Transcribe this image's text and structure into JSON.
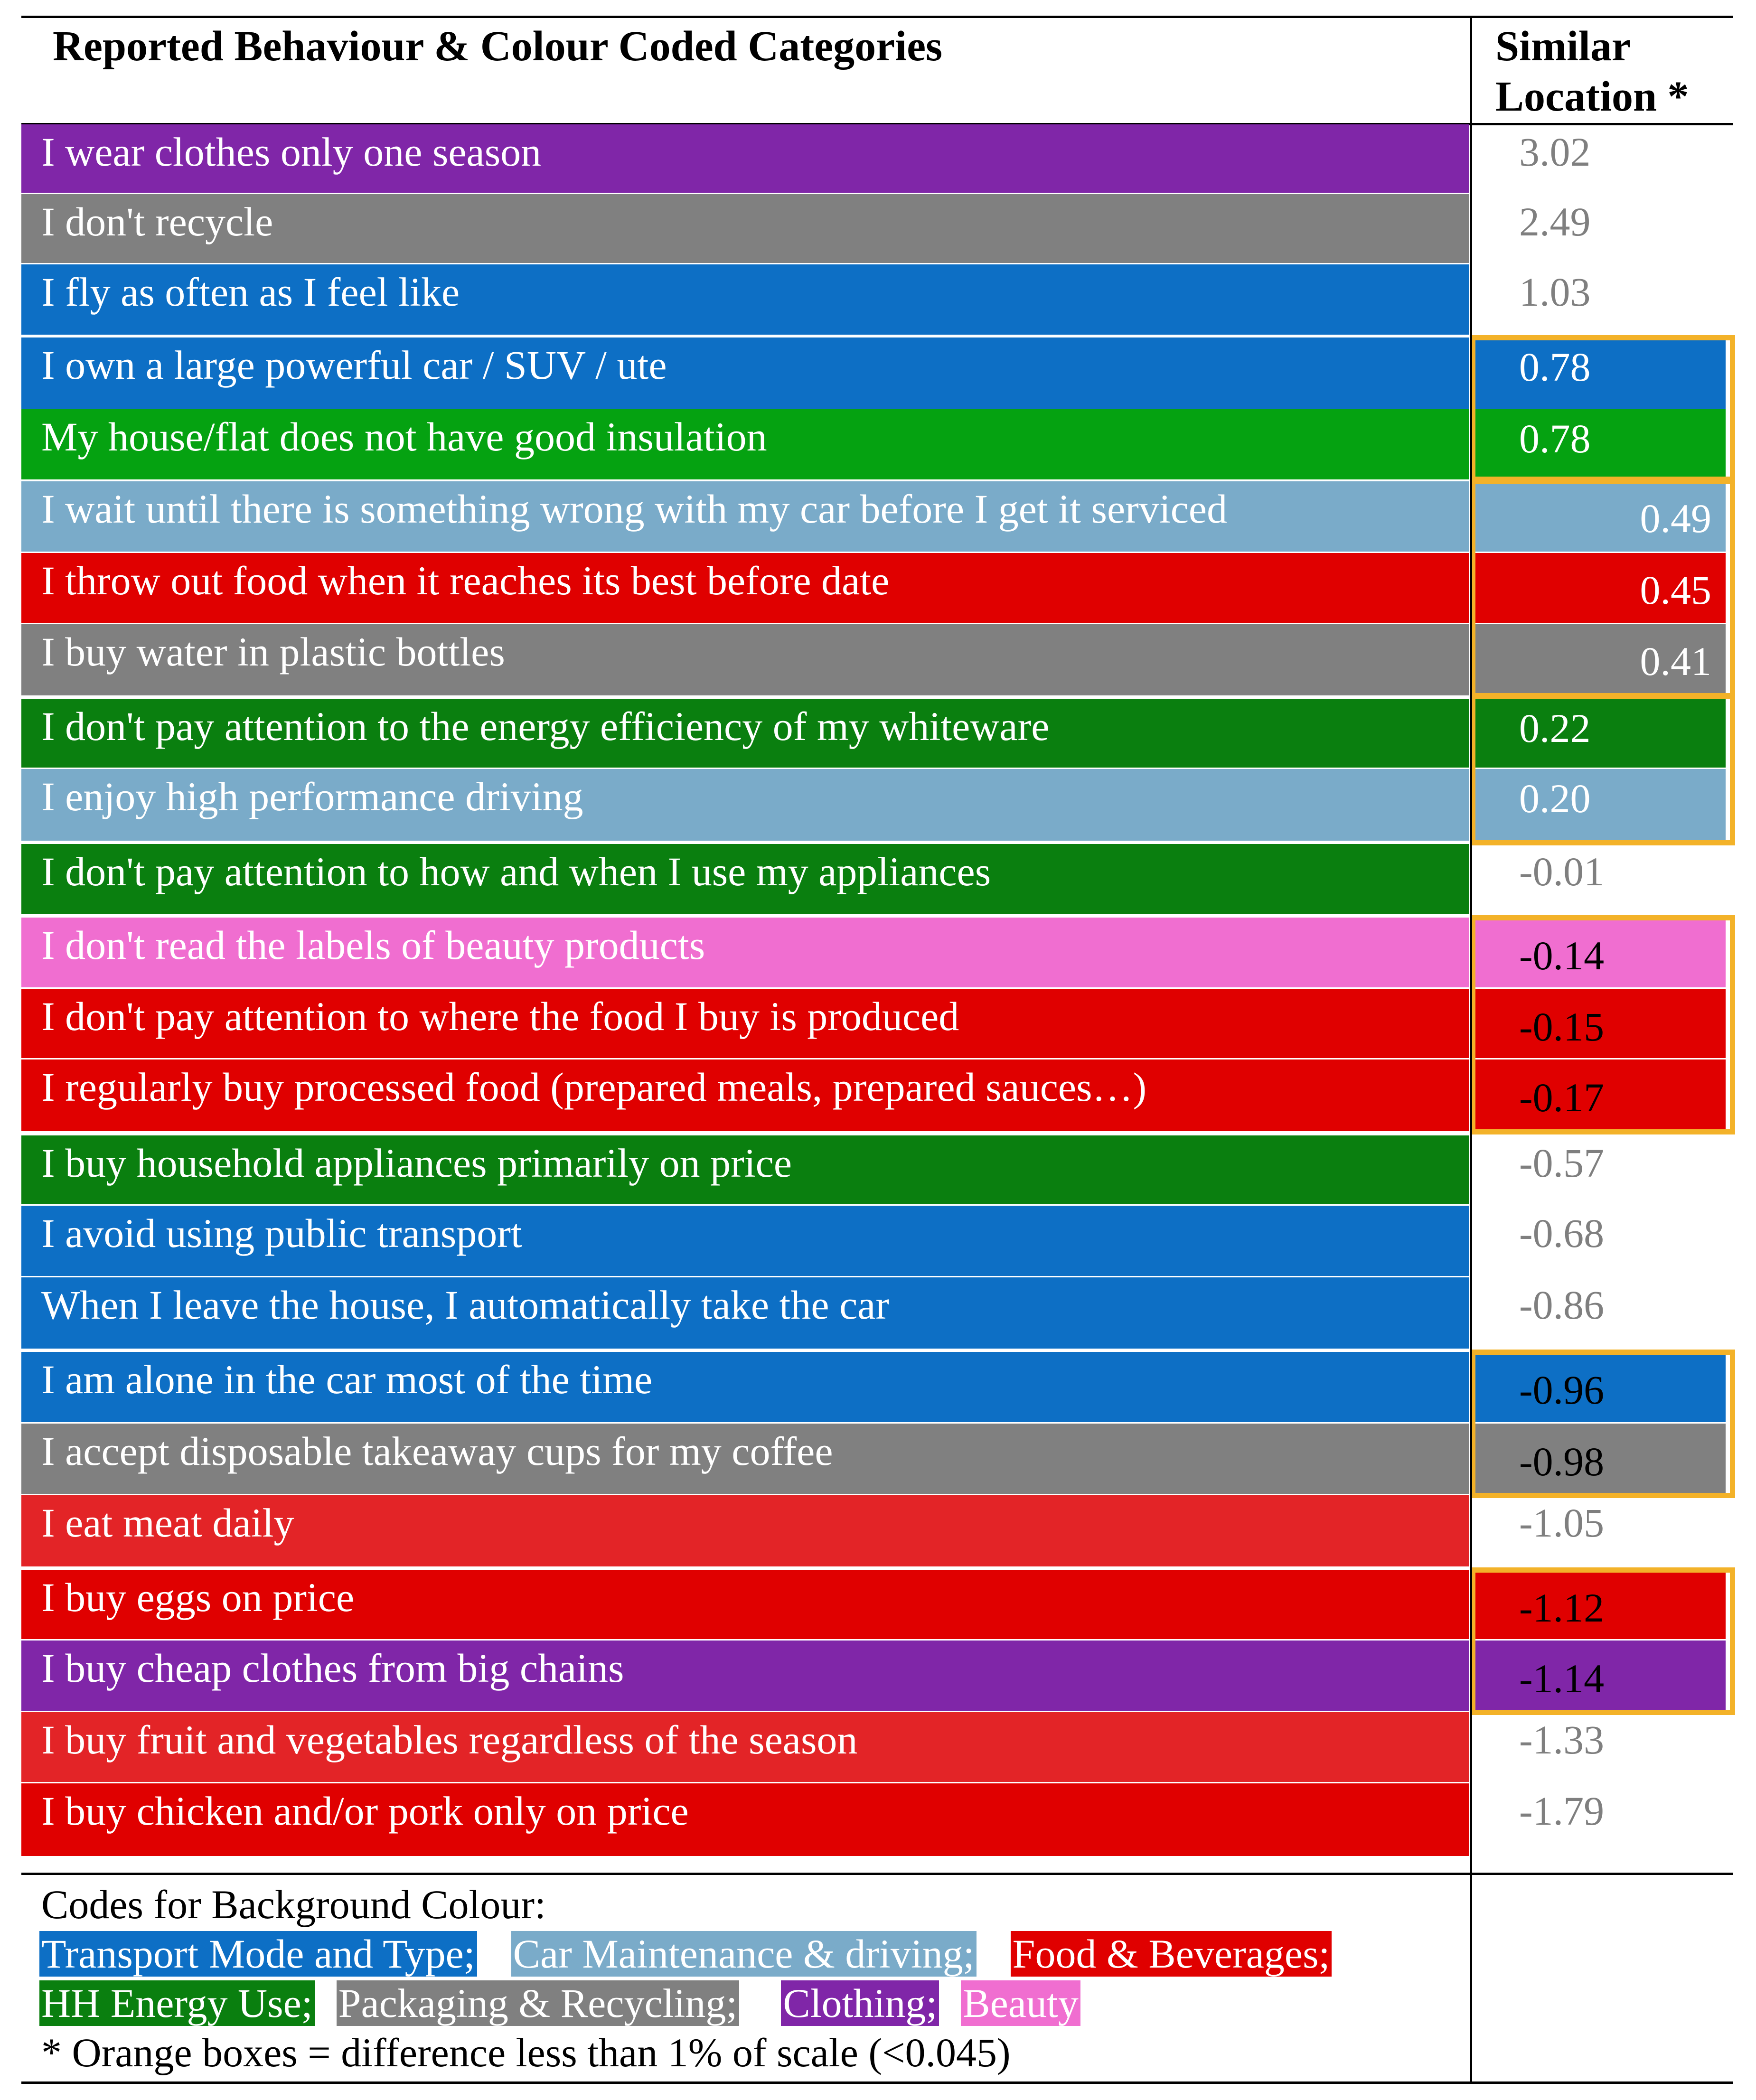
{
  "header": {
    "behaviour_title": "Reported Behaviour & Colour Coded Categories",
    "location_title_line1": "Similar",
    "location_title_line2": "Location *"
  },
  "colors": {
    "transport": "#0d6fc5",
    "car_maintenance": "#7aabc9",
    "food": "#e00000",
    "food_alt": "#e32427",
    "hh_energy": "#0a7f0f",
    "hh_energy_alt": "#05a211",
    "packaging": "#808080",
    "clothing": "#8026a8",
    "beauty": "#f06ed0",
    "orange_box": "#f3b229"
  },
  "rows": [
    {
      "behaviour": "I wear clothes only one season",
      "location": "3.02",
      "category": "clothing",
      "value_style": "plain"
    },
    {
      "behaviour": "I don't recycle",
      "location": "2.49",
      "category": "packaging",
      "value_style": "plain"
    },
    {
      "behaviour": "I fly as often as I feel like",
      "location": "1.03",
      "category": "transport",
      "value_style": "plain"
    },
    {
      "behaviour": "I own a large powerful car / SUV / ute",
      "location": "0.78",
      "category": "transport",
      "value_style": "filled-white"
    },
    {
      "behaviour": "My house/flat does not have good insulation",
      "location": "0.78",
      "category": "hh_energy_alt",
      "value_style": "filled-white"
    },
    {
      "behaviour": "I wait until there is something wrong with my car before I get it serviced",
      "location": "0.49",
      "category": "car_maintenance",
      "value_style": "filled-white-right"
    },
    {
      "behaviour": "I throw out food when it reaches its best before date",
      "location": "0.45",
      "category": "food",
      "value_style": "filled-white-right"
    },
    {
      "behaviour": "I buy water in plastic bottles",
      "location": "0.41",
      "category": "packaging",
      "value_style": "filled-white-right"
    },
    {
      "behaviour": "I don't pay attention to the energy efficiency of my whiteware",
      "location": "0.22",
      "category": "hh_energy",
      "value_style": "filled-white"
    },
    {
      "behaviour": "I enjoy high performance driving",
      "location": "0.20",
      "category": "car_maintenance",
      "value_style": "filled-white"
    },
    {
      "behaviour": "I don't pay attention to how and when I use my appliances",
      "location": "-0.01",
      "category": "hh_energy",
      "value_style": "plain"
    },
    {
      "behaviour": "I don't read the labels of beauty products",
      "location": "-0.14",
      "category": "beauty",
      "value_style": "filled-black"
    },
    {
      "behaviour": "I don't pay attention to where the food I buy is produced",
      "location": "-0.15",
      "category": "food",
      "value_style": "filled-black"
    },
    {
      "behaviour": "I regularly buy processed food (prepared meals, prepared sauces…)",
      "location": "-0.17",
      "category": "food",
      "value_style": "filled-black"
    },
    {
      "behaviour": "I buy household appliances primarily on price",
      "location": "-0.57",
      "category": "hh_energy",
      "value_style": "plain"
    },
    {
      "behaviour": "I avoid using public transport",
      "location": "-0.68",
      "category": "transport",
      "value_style": "plain"
    },
    {
      "behaviour": "When I leave the house, I automatically take the car",
      "location": "-0.86",
      "category": "transport",
      "value_style": "plain"
    },
    {
      "behaviour": "I am alone in the car most of the time",
      "location": "-0.96",
      "category": "transport",
      "value_style": "filled-black"
    },
    {
      "behaviour": "I accept disposable takeaway cups for my coffee",
      "location": "-0.98",
      "category": "packaging",
      "value_style": "filled-black"
    },
    {
      "behaviour": "I eat meat daily",
      "location": "-1.05",
      "category": "food_alt",
      "value_style": "plain"
    },
    {
      "behaviour": "I buy eggs on price",
      "location": "-1.12",
      "category": "food",
      "value_style": "filled-black"
    },
    {
      "behaviour": "I buy cheap clothes from big chains",
      "location": "-1.14",
      "category": "clothing",
      "value_style": "filled-black"
    },
    {
      "behaviour": "I buy fruit and vegetables regardless of the season",
      "location": "-1.33",
      "category": "food_alt",
      "value_style": "plain"
    },
    {
      "behaviour": "I buy chicken and/or pork only on price",
      "location": "-1.79",
      "category": "food",
      "value_style": "plain"
    }
  ],
  "legend": {
    "heading": "Codes for Background Colour:",
    "transport": "Transport Mode and Type;",
    "car_maintenance": "Car Maintenance & driving;",
    "food": "Food & Beverages;",
    "hh_energy": "HH Energy Use;",
    "packaging": "Packaging & Recycling;",
    "clothing": "Clothing;",
    "beauty": "Beauty",
    "footnote": "* Orange boxes = difference less than 1% of scale (<0.045)"
  }
}
